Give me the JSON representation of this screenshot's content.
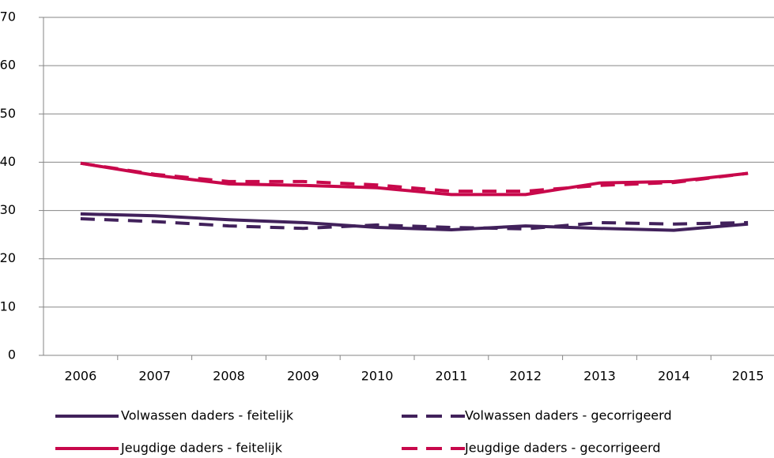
{
  "chart_data": {
    "type": "line",
    "categories": [
      "2006",
      "2007",
      "2008",
      "2009",
      "2010",
      "2011",
      "2012",
      "2013",
      "2014",
      "2015"
    ],
    "series": [
      {
        "name": "Volwassen daders - feitelijk",
        "color": "#41215b",
        "style": "solid",
        "values": [
          29.3,
          28.9,
          28.1,
          27.5,
          26.5,
          26.0,
          26.8,
          26.3,
          25.9,
          27.2
        ]
      },
      {
        "name": "Volwassen daders - gecorrigeerd",
        "color": "#41215b",
        "style": "dashed",
        "values": [
          28.3,
          27.7,
          26.8,
          26.3,
          27.0,
          26.5,
          26.2,
          27.5,
          27.2,
          27.5
        ]
      },
      {
        "name": "Jeugdige daders - feitelijk",
        "color": "#c8084b",
        "style": "solid",
        "values": [
          39.8,
          37.3,
          35.5,
          35.2,
          34.7,
          33.3,
          33.3,
          35.7,
          36.0,
          37.7
        ]
      },
      {
        "name": "Jeugdige daders - gecorrigeerd",
        "color": "#c8084b",
        "style": "dashed",
        "values": [
          39.8,
          37.5,
          36.0,
          36.0,
          35.3,
          34.0,
          34.0,
          35.2,
          35.8,
          37.7
        ]
      }
    ],
    "ylim": [
      0,
      70
    ],
    "yticks": [
      0,
      10,
      20,
      30,
      40,
      50,
      60,
      70
    ],
    "grid": true
  }
}
